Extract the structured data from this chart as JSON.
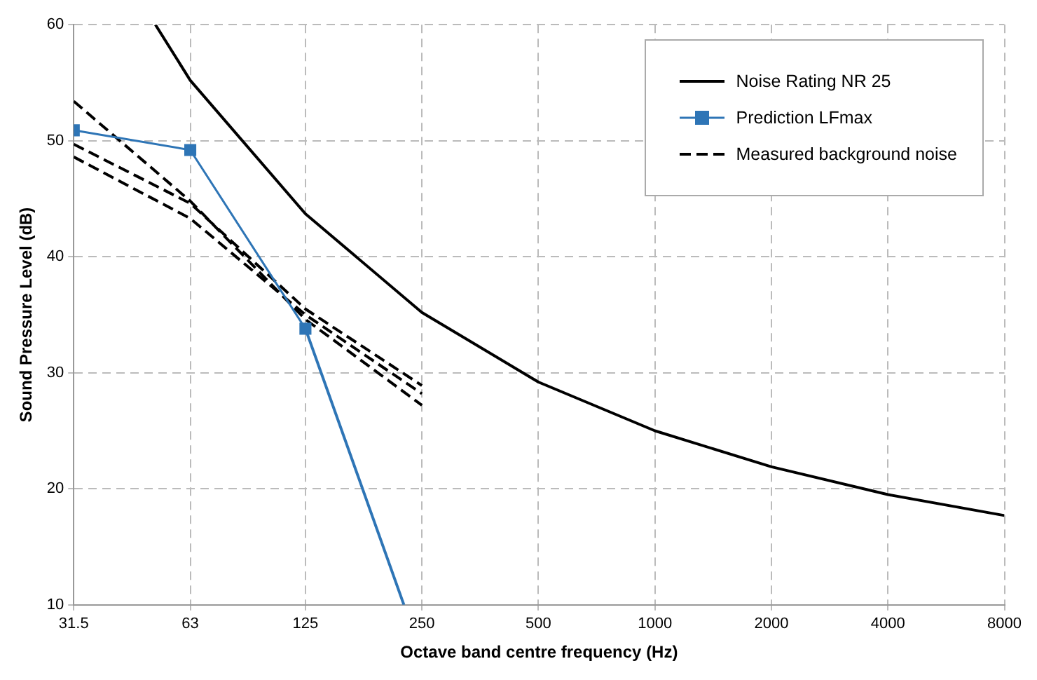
{
  "chart_data": {
    "type": "line",
    "xlabel": "Octave band centre frequency (Hz)",
    "ylabel": "Sound Pressure Level (dB)",
    "series": [
      {
        "name": "Noise Rating NR 25",
        "color": "#000000",
        "line_style": "solid",
        "marker": "none",
        "x": [
          51.2,
          63,
          125,
          250,
          500,
          1000,
          2000,
          4000,
          8000
        ],
        "values": [
          60,
          55.2,
          43.7,
          35.2,
          29.2,
          25.0,
          21.9,
          19.5,
          17.7
        ]
      },
      {
        "name": "Prediction LFmax",
        "color": "#2e75b6",
        "line_style": "solid",
        "marker": "square",
        "x": [
          31.5,
          63,
          125
        ],
        "values": [
          50.9,
          49.2,
          33.8
        ]
      },
      {
        "color": "#2e75b6",
        "line_style": "solid",
        "marker": "none",
        "x": [
          125,
          224.6
        ],
        "values": [
          33.8,
          10
        ]
      },
      {
        "name": "Measured background noise",
        "color": "#000000",
        "line_style": "dashed",
        "marker": "none",
        "x": [
          31.5,
          63,
          125,
          250
        ],
        "values": [
          53.4,
          44.8,
          34.6,
          27.2
        ]
      },
      {
        "color": "#000000",
        "line_style": "dashed",
        "marker": "none",
        "x": [
          31.5,
          63,
          125,
          250
        ],
        "values": [
          49.7,
          44.6,
          35.5,
          28.9
        ]
      },
      {
        "color": "#000000",
        "line_style": "dashed",
        "marker": "none",
        "x": [
          31.5,
          63,
          125,
          250
        ],
        "values": [
          48.6,
          43.3,
          35.0,
          28.2
        ]
      }
    ],
    "log": "x",
    "xlim": [
      31.5,
      8000
    ],
    "xticks": [
      31.5,
      63,
      125,
      250,
      500,
      1000,
      2000,
      4000,
      8000
    ],
    "ylim": [
      10,
      60
    ],
    "yticks": [
      10,
      20,
      30,
      40,
      50,
      60
    ],
    "grid": true,
    "legend": "top right"
  }
}
